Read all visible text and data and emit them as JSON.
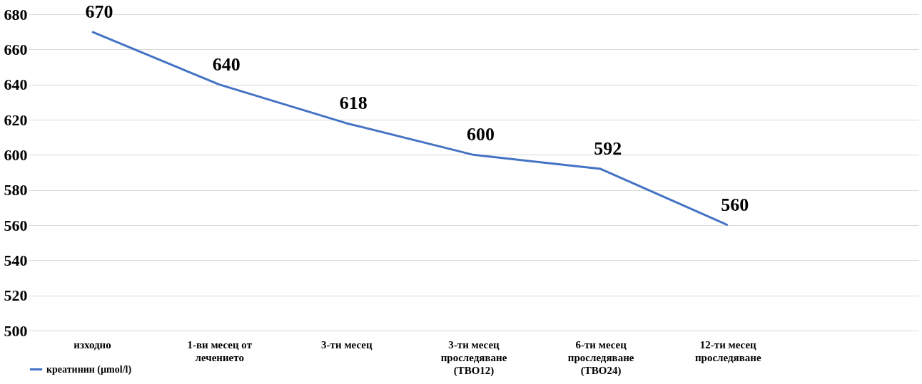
{
  "chart_data": {
    "type": "line",
    "categories": [
      "изходно",
      "1-ви месец от\nлечението",
      "3-ти месец",
      "3-ти месец\nпроследяване\n(ТВО12)",
      "6-ти месец\nпроследяване\n(ТВО24)",
      "12-ти месец\nпроследяване",
      null
    ],
    "series": [
      {
        "name": "креатинин (µmol/l)",
        "color": "#4472c4",
        "values": [
          670,
          640,
          618,
          600,
          592,
          560,
          null
        ]
      }
    ],
    "ylim": [
      500,
      680
    ],
    "yticks": [
      500,
      520,
      540,
      560,
      580,
      600,
      620,
      640,
      660,
      680
    ],
    "grid": "y",
    "legend": "bottom left",
    "data_labels": true,
    "marker": "none",
    "line_style": "solid"
  }
}
